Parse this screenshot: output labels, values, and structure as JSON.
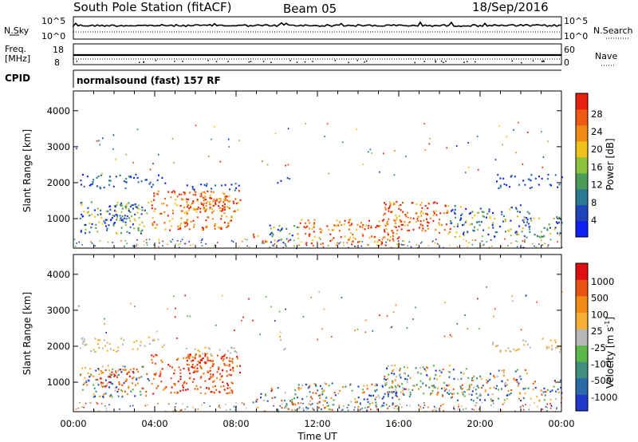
{
  "header": {
    "station": "South Pole Station (fitACF)",
    "beam": "Beam 05",
    "date": "18/Sep/2016"
  },
  "strips": {
    "nsky": {
      "label": "N.Sky",
      "ticks": [
        "10^5",
        "10^0"
      ],
      "right_label": "N.Search"
    },
    "freq": {
      "label_top": "Freq.",
      "label_unit": "[MHz]",
      "ticks": [
        "18",
        "8"
      ],
      "right_ticks": [
        "60",
        "0"
      ],
      "right_label": "Nave"
    },
    "cpid": {
      "label": "CPID",
      "value": "normalsound (fast) 157 RF"
    }
  },
  "chart_data": [
    {
      "type": "heatmap",
      "name": "Power",
      "ylabel": "Slant Range [km]",
      "xlabel": "Time UT",
      "x_ticks": [
        "00:00",
        "04:00",
        "08:00",
        "12:00",
        "16:00",
        "20:00",
        "00:00"
      ],
      "x_range_hours": [
        0,
        24
      ],
      "y_ticks": [
        1000,
        2000,
        3000,
        4000
      ],
      "ylim": [
        180,
        4550
      ],
      "colorbar": {
        "label": "Power [dB]",
        "ticks": [
          "4",
          "8",
          "12",
          "16",
          "20",
          "24",
          "28"
        ],
        "range": [
          0,
          30
        ]
      },
      "colors": [
        "#0f20f0",
        "#1f43b8",
        "#2a7a92",
        "#4a9a58",
        "#8cc23c",
        "#f0c21c",
        "#f08a16",
        "#ee5a12",
        "#e82010"
      ]
    },
    {
      "type": "heatmap",
      "name": "Velocity",
      "ylabel": "Slant Range [km]",
      "xlabel": "Time UT",
      "x_ticks": [
        "00:00",
        "04:00",
        "08:00",
        "12:00",
        "16:00",
        "20:00",
        "00:00"
      ],
      "x_range_hours": [
        0,
        24
      ],
      "y_ticks": [
        1000,
        2000,
        3000,
        4000
      ],
      "ylim": [
        180,
        4550
      ],
      "colorbar": {
        "label": "Velocity [m s",
        "label_sup": "-1",
        "label_end": "]",
        "ticks": [
          "1000",
          "500",
          "100",
          "25",
          "-25",
          "-100",
          "-500",
          "-1000"
        ]
      },
      "colors": [
        "#2038c8",
        "#2a6aa8",
        "#3f8f7c",
        "#5cb84a",
        "#b8b8b8",
        "#f3b032",
        "#f08a16",
        "#ea5214",
        "#e01010"
      ]
    }
  ]
}
